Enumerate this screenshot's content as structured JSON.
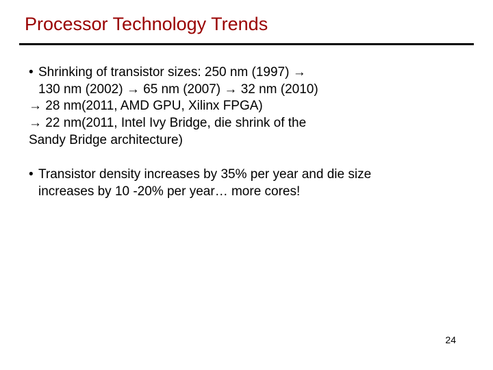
{
  "title": "Processor Technology Trends",
  "colors": {
    "title": "#990000",
    "text": "#000000",
    "rule": "#000000",
    "background": "#ffffff"
  },
  "typography": {
    "title_fontsize": 27,
    "body_fontsize": 19,
    "pagenum_fontsize": 14,
    "font_family": "Arial"
  },
  "arrow_glyph": "à",
  "bullets": {
    "b1": {
      "line1_pre": "Shrinking of transistor sizes: 250 nm (1997) ",
      "line2": "130 nm (2002) → 65 nm (2007) → 32 nm (2010)",
      "line3": "→ 28 nm(2011, AMD GPU, Xilinx FPGA)",
      "line4": "→ 22 nm(2011, Intel Ivy Bridge, die shrink of the",
      "line5": "Sandy Bridge architecture)"
    },
    "b2": {
      "line1": "Transistor density increases by 35% per year and die size",
      "line2": "increases by 10 -20% per year… more cores!"
    }
  },
  "page_number": "24"
}
